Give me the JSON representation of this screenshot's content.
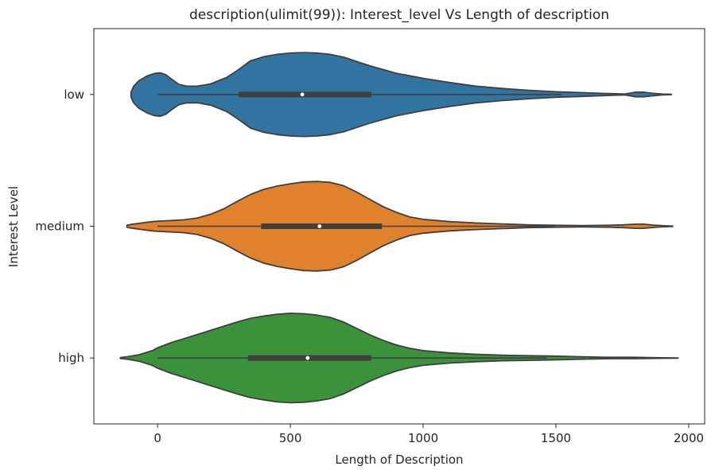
{
  "chart_data": {
    "type": "violin",
    "orientation": "horizontal",
    "title": "description(ulimit(99)): Interest_level Vs Length of description",
    "xlabel": "Length of Description",
    "ylabel": "Interest Level",
    "xlim": [
      -240,
      2060
    ],
    "x_ticks": [
      0,
      500,
      1000,
      1500,
      2000
    ],
    "x_tick_labels": [
      "0",
      "500",
      "1000",
      "1500",
      "2000"
    ],
    "grid": false,
    "legend": "none",
    "categories": [
      "low",
      "medium",
      "high"
    ],
    "series": [
      {
        "category": "low",
        "color": "#3274a1",
        "whisker": [
          0,
          1520
        ],
        "box": [
          305,
          805
        ],
        "median": 545,
        "density": [
          [
            -100,
            0.05
          ],
          [
            -90,
            0.18
          ],
          [
            -70,
            0.3
          ],
          [
            -40,
            0.4
          ],
          [
            -10,
            0.46
          ],
          [
            10,
            0.47
          ],
          [
            30,
            0.43
          ],
          [
            60,
            0.3
          ],
          [
            80,
            0.22
          ],
          [
            110,
            0.18
          ],
          [
            150,
            0.18
          ],
          [
            200,
            0.23
          ],
          [
            260,
            0.37
          ],
          [
            300,
            0.52
          ],
          [
            350,
            0.73
          ],
          [
            400,
            0.82
          ],
          [
            450,
            0.87
          ],
          [
            500,
            0.9
          ],
          [
            550,
            0.91
          ],
          [
            600,
            0.9
          ],
          [
            650,
            0.87
          ],
          [
            700,
            0.81
          ],
          [
            800,
            0.62
          ],
          [
            900,
            0.46
          ],
          [
            1000,
            0.35
          ],
          [
            1100,
            0.26
          ],
          [
            1200,
            0.18
          ],
          [
            1300,
            0.13
          ],
          [
            1400,
            0.09
          ],
          [
            1500,
            0.06
          ],
          [
            1600,
            0.04
          ],
          [
            1700,
            0.02
          ],
          [
            1760,
            0.01
          ],
          [
            1800,
            0.05
          ],
          [
            1830,
            0.05
          ],
          [
            1860,
            0.03
          ],
          [
            1900,
            0.01
          ],
          [
            1935,
            0.003
          ]
        ]
      },
      {
        "category": "medium",
        "color": "#e1812c",
        "whisker": [
          0,
          1495
        ],
        "box": [
          390,
          845
        ],
        "median": 610,
        "density": [
          [
            -115,
            0.02
          ],
          [
            -100,
            0.04
          ],
          [
            -60,
            0.07
          ],
          [
            -20,
            0.1
          ],
          [
            0,
            0.11
          ],
          [
            40,
            0.12
          ],
          [
            100,
            0.14
          ],
          [
            150,
            0.18
          ],
          [
            200,
            0.26
          ],
          [
            250,
            0.38
          ],
          [
            300,
            0.54
          ],
          [
            350,
            0.69
          ],
          [
            400,
            0.8
          ],
          [
            450,
            0.87
          ],
          [
            500,
            0.92
          ],
          [
            550,
            0.96
          ],
          [
            600,
            0.97
          ],
          [
            650,
            0.95
          ],
          [
            700,
            0.88
          ],
          [
            750,
            0.74
          ],
          [
            800,
            0.58
          ],
          [
            850,
            0.42
          ],
          [
            900,
            0.3
          ],
          [
            950,
            0.2
          ],
          [
            1000,
            0.15
          ],
          [
            1100,
            0.1
          ],
          [
            1200,
            0.07
          ],
          [
            1300,
            0.05
          ],
          [
            1400,
            0.03
          ],
          [
            1500,
            0.02
          ],
          [
            1600,
            0.015
          ],
          [
            1700,
            0.02
          ],
          [
            1750,
            0.03
          ],
          [
            1800,
            0.045
          ],
          [
            1830,
            0.045
          ],
          [
            1870,
            0.025
          ],
          [
            1910,
            0.01
          ],
          [
            1940,
            0.003
          ]
        ]
      },
      {
        "category": "high",
        "color": "#3a923a",
        "whisker": [
          0,
          1465
        ],
        "box": [
          340,
          805
        ],
        "median": 565,
        "density": [
          [
            -140,
            0.01
          ],
          [
            -110,
            0.03
          ],
          [
            -70,
            0.07
          ],
          [
            -20,
            0.16
          ],
          [
            0,
            0.22
          ],
          [
            50,
            0.33
          ],
          [
            100,
            0.42
          ],
          [
            150,
            0.51
          ],
          [
            200,
            0.6
          ],
          [
            250,
            0.69
          ],
          [
            300,
            0.78
          ],
          [
            350,
            0.86
          ],
          [
            400,
            0.91
          ],
          [
            450,
            0.95
          ],
          [
            500,
            0.97
          ],
          [
            550,
            0.96
          ],
          [
            600,
            0.93
          ],
          [
            650,
            0.88
          ],
          [
            700,
            0.78
          ],
          [
            750,
            0.64
          ],
          [
            800,
            0.5
          ],
          [
            850,
            0.38
          ],
          [
            900,
            0.28
          ],
          [
            950,
            0.21
          ],
          [
            1000,
            0.16
          ],
          [
            1100,
            0.11
          ],
          [
            1200,
            0.08
          ],
          [
            1300,
            0.06
          ],
          [
            1400,
            0.05
          ],
          [
            1500,
            0.04
          ],
          [
            1600,
            0.025
          ],
          [
            1700,
            0.015
          ],
          [
            1800,
            0.015
          ],
          [
            1850,
            0.01
          ],
          [
            1900,
            0.005
          ],
          [
            1960,
            0.002
          ]
        ]
      }
    ]
  }
}
